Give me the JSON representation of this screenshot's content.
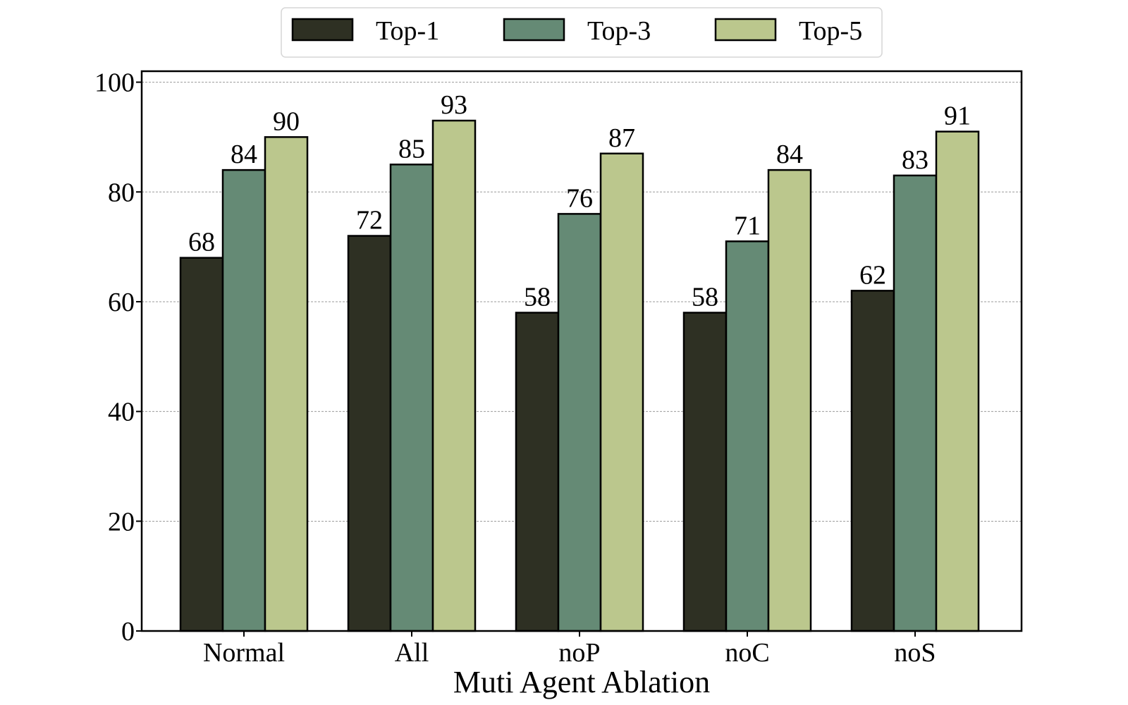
{
  "chart_data": {
    "type": "bar",
    "title": "",
    "xlabel": "Muti Agent Ablation",
    "ylabel": "",
    "categories": [
      "Normal",
      "All",
      "noP",
      "noC",
      "noS"
    ],
    "series": [
      {
        "name": "Top-1",
        "color": "#2e3023",
        "values": [
          68,
          72,
          58,
          58,
          62
        ]
      },
      {
        "name": "Top-3",
        "color": "#658a75",
        "values": [
          84,
          85,
          76,
          71,
          83
        ]
      },
      {
        "name": "Top-5",
        "color": "#bbc78d",
        "values": [
          90,
          93,
          87,
          84,
          91
        ]
      }
    ],
    "ylim": [
      0,
      102
    ],
    "yticks": [
      0,
      20,
      40,
      60,
      80,
      100
    ],
    "grid": true,
    "data_labels": true,
    "legend_position": "top-center"
  }
}
